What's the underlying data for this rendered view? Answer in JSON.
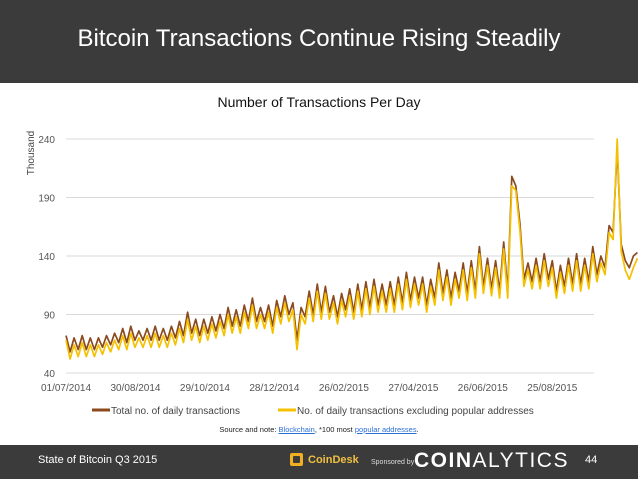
{
  "slide": {
    "title": "Bitcoin Transactions Continue Rising Steadily",
    "note_prefix": "Source and note: ",
    "note_link1": "Blockchain",
    "note_middle": ", *100 most ",
    "note_link2": "popular addresses",
    "note_suffix": "."
  },
  "footer": {
    "left": "State of Bitcoin Q3 2015",
    "brand": "CoinDesk",
    "sponsored": "Sponsored by",
    "sponsor_bold": "COIN",
    "sponsor_rest": "ALYTICS",
    "page": "44"
  },
  "colors": {
    "header_bg": "#3b3b3b",
    "series_total": "#8b4a1e",
    "series_excl": "#f5c000",
    "grid": "#d9d9d9"
  },
  "chart_data": {
    "type": "line",
    "title": "Number of Transactions Per Day",
    "ylabel": "Thousand",
    "xlabel": "",
    "ylim": [
      40,
      240
    ],
    "yticks": [
      40,
      90,
      140,
      190,
      240
    ],
    "x_tick_labels": [
      "01/07/2014",
      "30/08/2014",
      "29/10/2014",
      "28/12/2014",
      "26/02/2015",
      "27/04/2015",
      "26/06/2015",
      "25/08/2015"
    ],
    "x_start": "01/07/2014",
    "x_end": "30/09/2015",
    "point_interval_days": 3.5,
    "legend_position": "bottom",
    "series": [
      {
        "name": "Total no. of daily transactions",
        "color": "#8b4a1e",
        "values": [
          72,
          58,
          70,
          60,
          72,
          60,
          70,
          60,
          70,
          62,
          72,
          64,
          74,
          66,
          78,
          66,
          80,
          68,
          76,
          68,
          78,
          68,
          80,
          68,
          78,
          68,
          80,
          70,
          84,
          72,
          92,
          74,
          86,
          72,
          86,
          74,
          88,
          76,
          90,
          78,
          96,
          80,
          94,
          80,
          98,
          84,
          104,
          84,
          96,
          84,
          98,
          80,
          102,
          88,
          106,
          90,
          100,
          68,
          96,
          88,
          110,
          90,
          116,
          92,
          114,
          92,
          106,
          88,
          108,
          94,
          112,
          92,
          116,
          94,
          118,
          96,
          120,
          98,
          116,
          98,
          118,
          98,
          122,
          100,
          126,
          102,
          122,
          104,
          122,
          98,
          120,
          104,
          134,
          108,
          128,
          104,
          126,
          110,
          134,
          108,
          136,
          110,
          148,
          114,
          138,
          112,
          136,
          110,
          152,
          110,
          208,
          200,
          168,
          120,
          134,
          118,
          138,
          118,
          142,
          120,
          136,
          110,
          132,
          114,
          138,
          116,
          142,
          116,
          138,
          118,
          148,
          124,
          140,
          130,
          166,
          160,
          232,
          150,
          136,
          130,
          140,
          143
        ]
      },
      {
        "name": "No. of daily transactions excluding popular addresses",
        "color": "#f5c000",
        "values": [
          68,
          52,
          64,
          54,
          66,
          54,
          64,
          54,
          64,
          56,
          66,
          58,
          68,
          60,
          72,
          60,
          74,
          62,
          70,
          62,
          72,
          62,
          74,
          62,
          72,
          62,
          74,
          64,
          78,
          66,
          86,
          68,
          80,
          66,
          80,
          68,
          82,
          70,
          84,
          72,
          90,
          74,
          88,
          74,
          92,
          78,
          98,
          78,
          90,
          78,
          92,
          74,
          96,
          82,
          100,
          84,
          94,
          60,
          90,
          82,
          104,
          84,
          110,
          86,
          108,
          86,
          100,
          82,
          102,
          88,
          106,
          86,
          110,
          88,
          112,
          90,
          114,
          92,
          110,
          92,
          112,
          92,
          116,
          94,
          120,
          96,
          116,
          98,
          116,
          92,
          114,
          98,
          128,
          102,
          122,
          98,
          120,
          104,
          128,
          102,
          130,
          104,
          142,
          108,
          132,
          106,
          130,
          104,
          146,
          104,
          200,
          196,
          162,
          114,
          128,
          112,
          132,
          112,
          136,
          114,
          130,
          104,
          126,
          108,
          132,
          110,
          136,
          110,
          132,
          112,
          142,
          118,
          134,
          124,
          160,
          154,
          240,
          144,
          128,
          120,
          130,
          138
        ]
      }
    ]
  }
}
